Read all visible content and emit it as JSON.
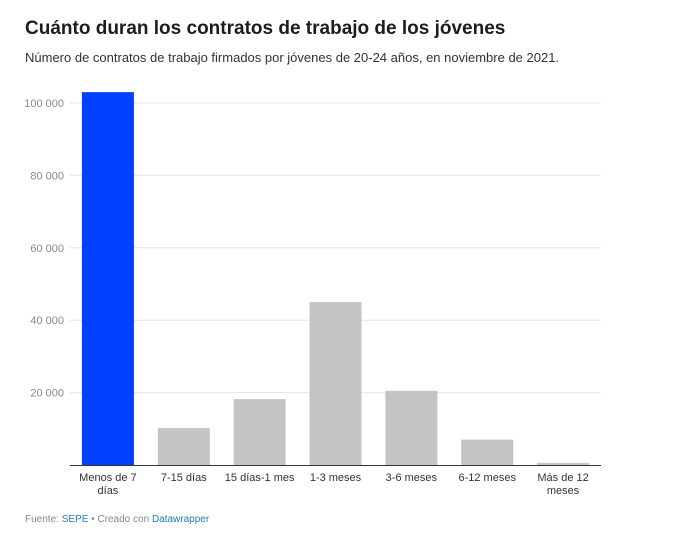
{
  "header": {
    "title": "Cuánto duran los contratos de trabajo de los jóvenes",
    "subtitle": "Número de contratos de trabajo firmados por jóvenes de 20-24 años, en noviembre de 2021."
  },
  "footer": {
    "source_label": "Fuente: ",
    "source_name": "SEPE",
    "created_label": " • Creado con ",
    "tool_name": "Datawrapper"
  },
  "colors": {
    "highlight": "#0040ff",
    "default_bar": "#c4c4c4",
    "grid": "#e6e6e6",
    "axis": "#333333",
    "tick_text": "#888888",
    "category_text": "#333333"
  },
  "chart_data": {
    "type": "bar",
    "categories": [
      [
        "Menos de 7",
        "días"
      ],
      [
        "7-15 días"
      ],
      [
        "15 días-1 mes"
      ],
      [
        "1-3 meses"
      ],
      [
        "3-6 meses"
      ],
      [
        "6-12 meses"
      ],
      [
        "Más de 12",
        "meses"
      ]
    ],
    "values": [
      103000,
      10200,
      18200,
      45000,
      20500,
      7000,
      600
    ],
    "highlight_index": 0,
    "ylim": [
      0,
      100000
    ],
    "yticks": [
      20000,
      40000,
      60000,
      80000,
      100000
    ],
    "ytick_labels": [
      "20 000",
      "40 000",
      "60 000",
      "80 000",
      "100 000"
    ],
    "grid": true,
    "xlabel": "",
    "ylabel": ""
  }
}
